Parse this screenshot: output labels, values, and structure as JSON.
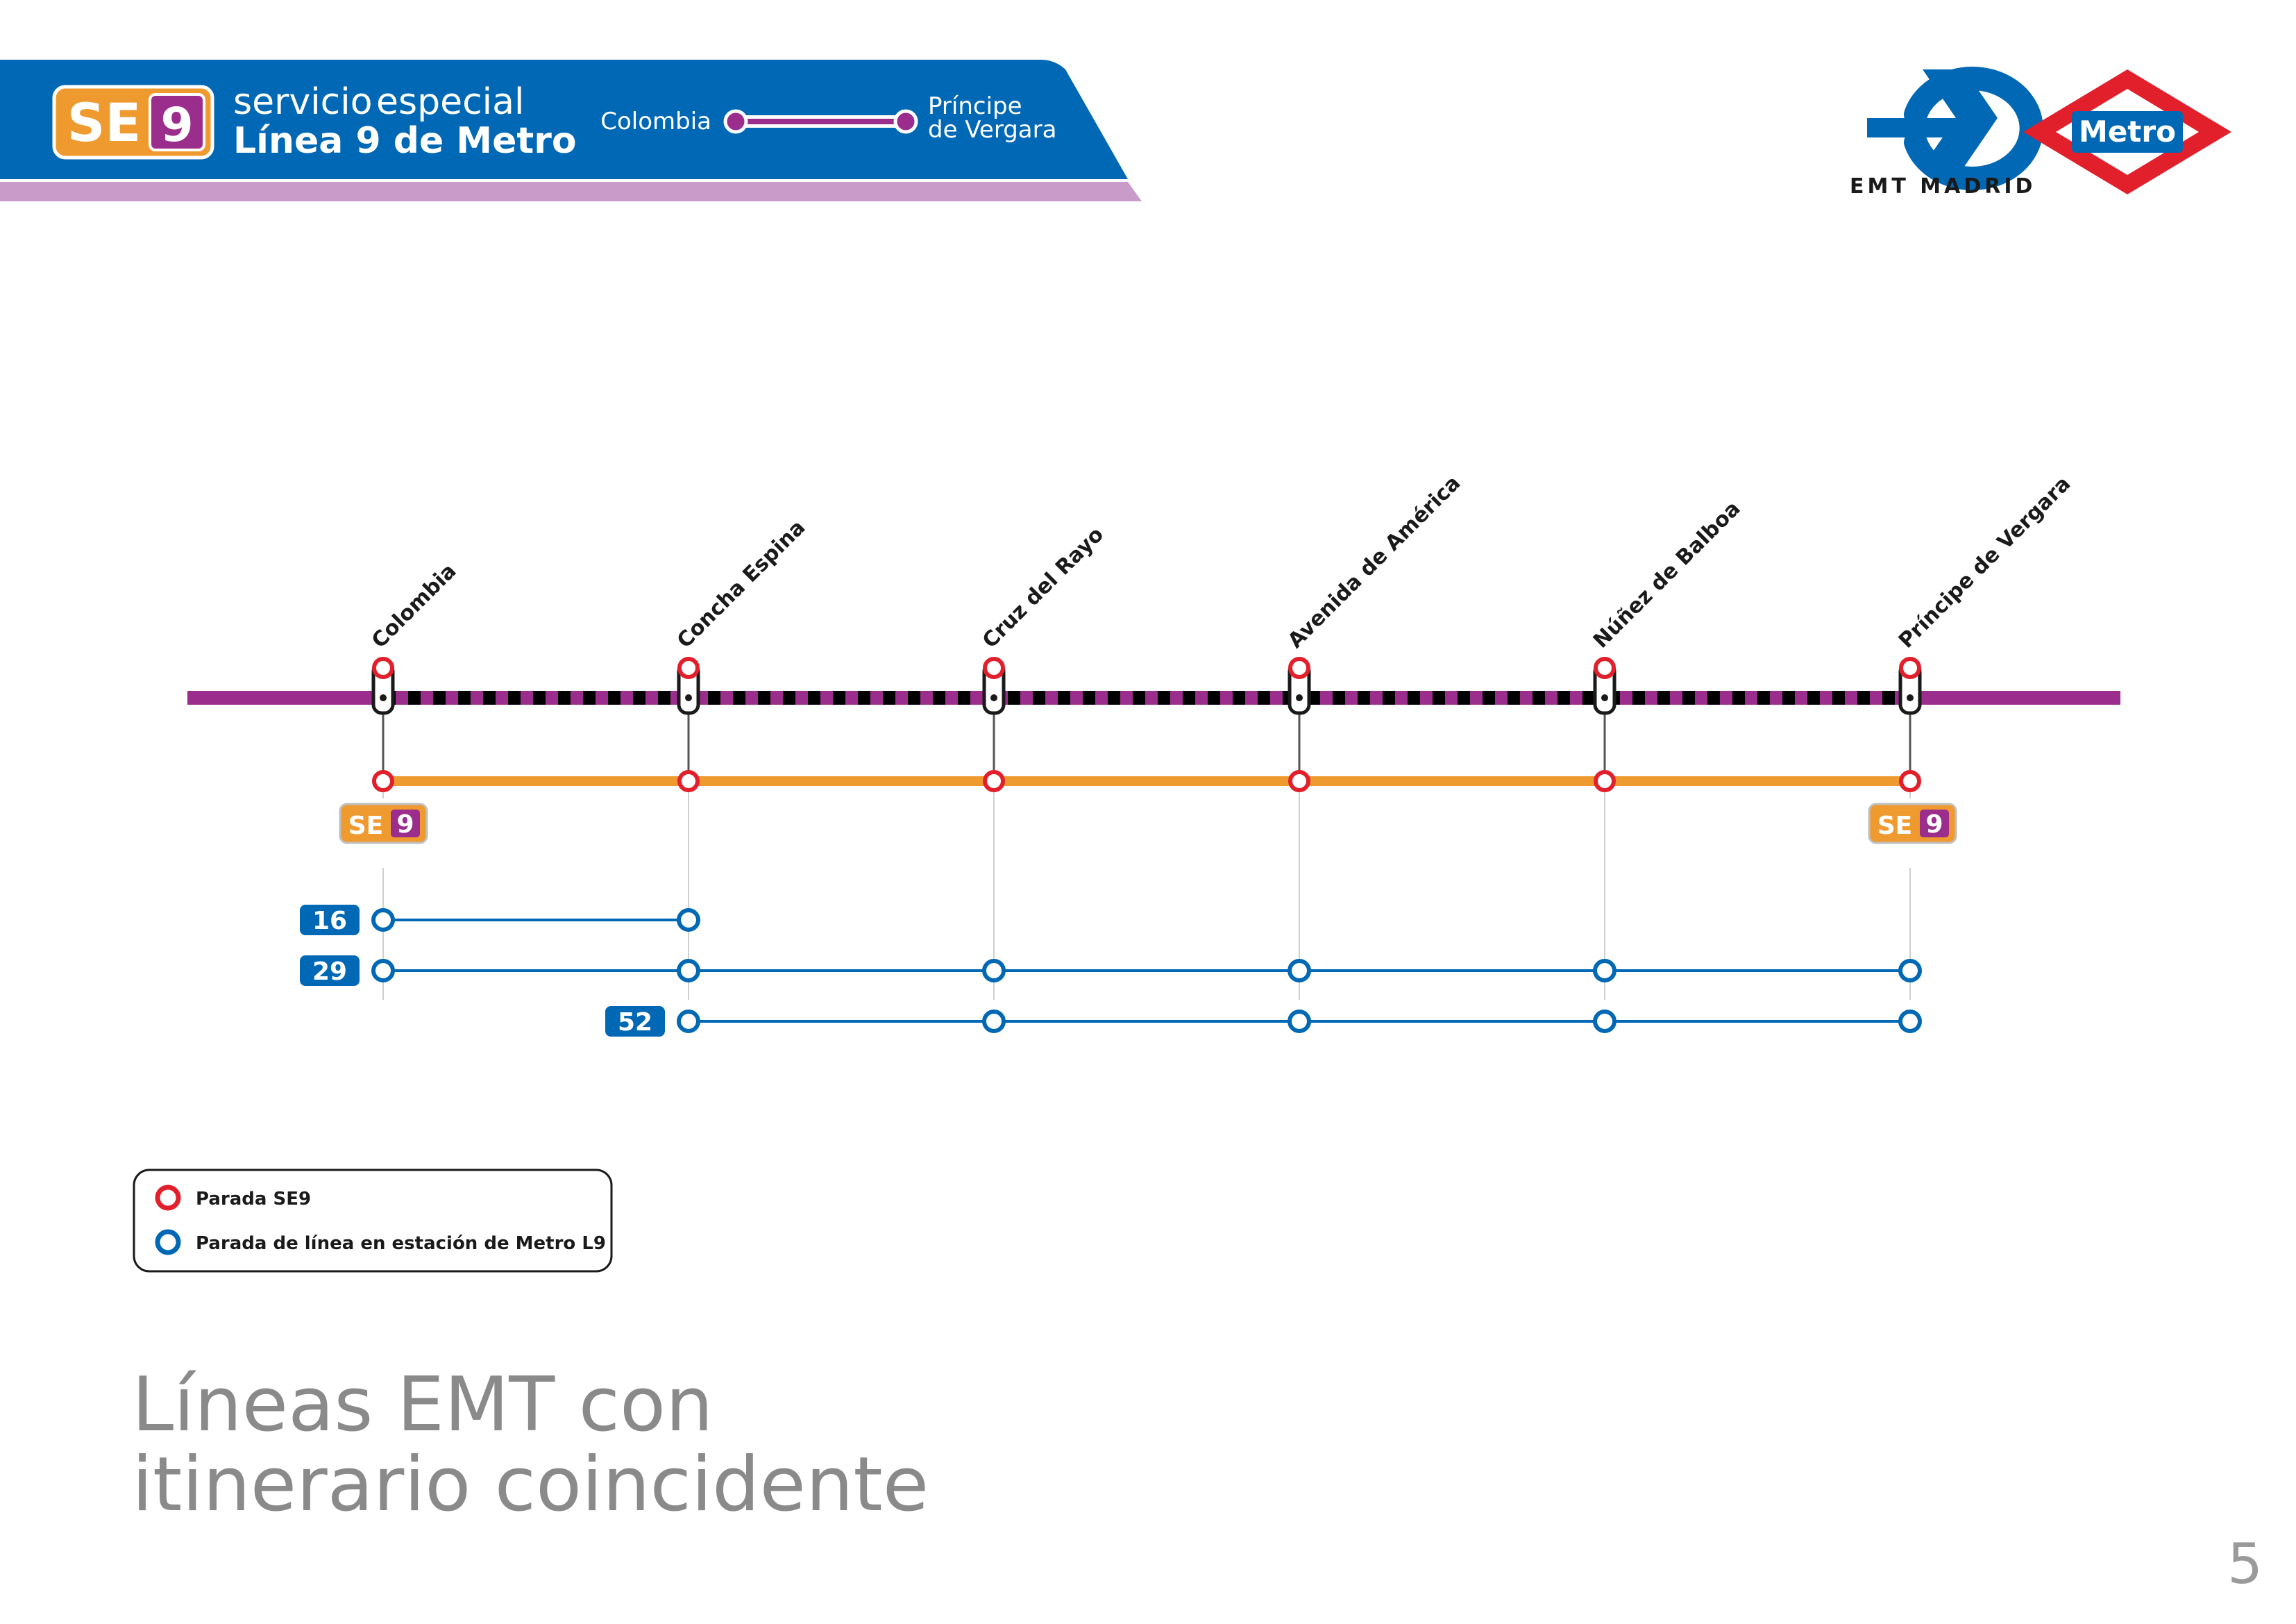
{
  "header": {
    "badge_se": "SE",
    "badge_num": "9",
    "line1": "servicio",
    "line1b": "especial",
    "line2": "Línea 9 de Metro",
    "from": "Colombia",
    "to_line1": "Príncipe",
    "to_line2": "de Vergara"
  },
  "logos": {
    "emt_text": "EMT MADRID",
    "metro_text": "Metro"
  },
  "stations": [
    "Colombia",
    "Concha Espina",
    "Cruz del Rayo",
    "Avenida de América",
    "Núñez de Balboa",
    "Príncipe de Vergara"
  ],
  "se9_badge": {
    "se": "SE",
    "num": "9"
  },
  "bus_lines": [
    {
      "number": "16"
    },
    {
      "number": "29"
    },
    {
      "number": "52"
    }
  ],
  "legend": {
    "se9_stop": "Parada SE9",
    "line_stop": "Parada de línea en estación de Metro L9"
  },
  "title": {
    "line1": "Líneas EMT con",
    "line2": "itinerario coincidente"
  },
  "page_number": "5",
  "colors": {
    "blue": "#0068b4",
    "purple": "#9b2d8c",
    "orange": "#ef9a2f",
    "red": "#e2202c",
    "lilac": "#c89bc9"
  }
}
